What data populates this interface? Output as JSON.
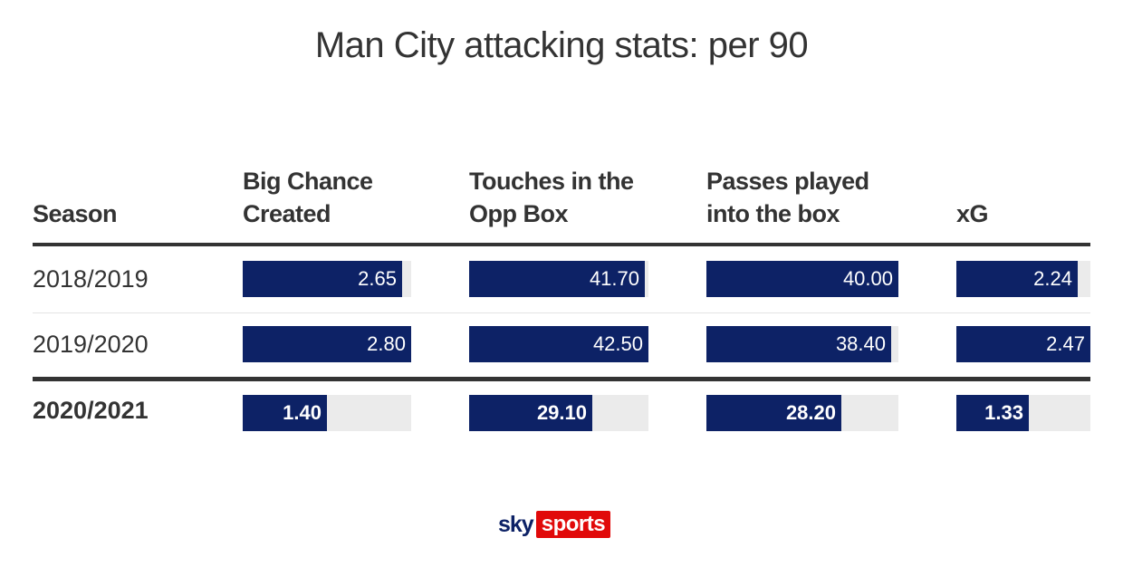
{
  "title": "Man City attacking stats: per 90",
  "columns": {
    "season": "Season",
    "big_chance_1": "Big Chance",
    "big_chance_2": "Created",
    "touches_1": "Touches in the",
    "touches_2": "Opp Box",
    "passes_1": "Passes played",
    "passes_2": "into the box",
    "xg": "xG"
  },
  "chart_data": {
    "type": "table",
    "title": "Man City attacking stats: per 90",
    "categories": [
      "2018/2019",
      "2019/2020",
      "2020/2021"
    ],
    "highlighted_row": "2020/2021",
    "series": [
      {
        "name": "Big Chance Created",
        "values": [
          2.65,
          2.8,
          1.4
        ],
        "labels": [
          "2.65",
          "2.80",
          "1.40"
        ],
        "max": 2.8
      },
      {
        "name": "Touches in the Opp Box",
        "values": [
          41.7,
          42.5,
          29.1
        ],
        "labels": [
          "41.70",
          "42.50",
          "29.10"
        ],
        "max": 42.5
      },
      {
        "name": "Passes played into the box",
        "values": [
          40.0,
          38.4,
          28.2
        ],
        "labels": [
          "40.00",
          "38.40",
          "28.20"
        ],
        "max": 40.0
      },
      {
        "name": "xG",
        "values": [
          2.24,
          2.47,
          1.33
        ],
        "labels": [
          "2.24",
          "2.47",
          "1.33"
        ],
        "max": 2.47
      }
    ],
    "colors": {
      "bar": "#0d2266",
      "track": "#ebebeb",
      "text": "#333333"
    }
  },
  "brand": {
    "sky": "sky",
    "sports": "sports",
    "colors": {
      "sky": "#0d2266",
      "sports_bg": "#e10a0a"
    }
  }
}
